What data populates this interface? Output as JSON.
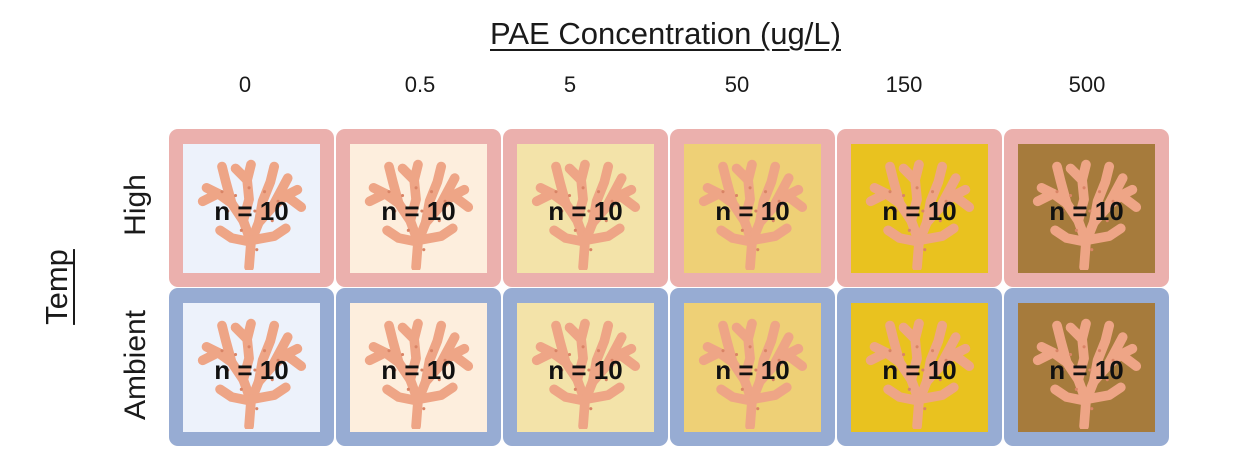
{
  "title": "PAE Concentration (ug/L)",
  "y_axis_label": "Temp",
  "columns": [
    "0",
    "0.5",
    "5",
    "50",
    "150",
    "500"
  ],
  "rows": [
    {
      "label": "High",
      "border_color": "#ebb0ad",
      "cells": [
        {
          "n": "n = 10",
          "fill": "#edf2fb"
        },
        {
          "n": "n = 10",
          "fill": "#fdeedd"
        },
        {
          "n": "n = 10",
          "fill": "#f3e3a9"
        },
        {
          "n": "n = 10",
          "fill": "#eed076"
        },
        {
          "n": "n = 10",
          "fill": "#e9c21f"
        },
        {
          "n": "n = 10",
          "fill": "#a67b3c"
        }
      ]
    },
    {
      "label": "Ambient",
      "border_color": "#97acd3",
      "cells": [
        {
          "n": "n = 10",
          "fill": "#edf2fb"
        },
        {
          "n": "n = 10",
          "fill": "#fdeedd"
        },
        {
          "n": "n = 10",
          "fill": "#f3e3a9"
        },
        {
          "n": "n = 10",
          "fill": "#eed076"
        },
        {
          "n": "n = 10",
          "fill": "#e9c21f"
        },
        {
          "n": "n = 10",
          "fill": "#a67b3c"
        }
      ]
    }
  ],
  "icon": "coral-icon",
  "coral_color": "#eea586"
}
